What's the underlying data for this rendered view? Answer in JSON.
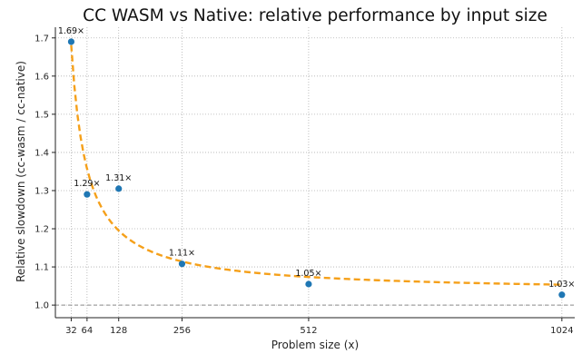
{
  "chart_data": {
    "type": "scatter",
    "title": "CC WASM vs Native: relative performance by input size",
    "xlabel": "Problem size (x)",
    "ylabel": "Relative slowdown (cc-wasm / cc-native)",
    "xlim": [
      0,
      1050
    ],
    "ylim": [
      0.967,
      1.728
    ],
    "x_ticks": [
      32,
      64,
      128,
      256,
      512,
      1024
    ],
    "y_ticks": [
      1.0,
      1.1,
      1.2,
      1.3,
      1.4,
      1.5,
      1.6,
      1.7
    ],
    "grid": true,
    "reference_line": 1.0,
    "series": [
      {
        "x": [
          32,
          64,
          128,
          256,
          512,
          1024
        ],
        "y": [
          1.69,
          1.29,
          1.305,
          1.108,
          1.055,
          1.027
        ],
        "labels": [
          "1.69×",
          "1.29×",
          "1.31×",
          "1.11×",
          "1.05×",
          "1.03×"
        ],
        "color": "#1f77b4"
      }
    ],
    "fit": {
      "color": "#f5a01a",
      "style": "dashed",
      "x_start": 32,
      "x_end": 1024
    }
  }
}
